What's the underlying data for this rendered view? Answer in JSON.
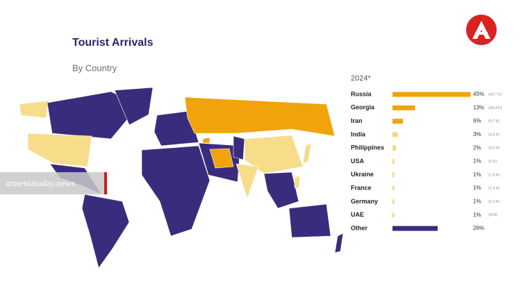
{
  "chart_data": {
    "type": "bar",
    "orientation": "horizontal",
    "title": "Tourist Arrivals",
    "subtitle": "By Country",
    "period_label": "2024*",
    "categories": [
      "Russia",
      "Georgia",
      "Iran",
      "India",
      "Philippines",
      "USA",
      "Ukraine",
      "France",
      "Germany",
      "UAE",
      "Other"
    ],
    "values": [
      45,
      13,
      6,
      3,
      2,
      1,
      1,
      1,
      1,
      1,
      26
    ],
    "value_labels": [
      "45%",
      "13%",
      "6%",
      "3%",
      "2%",
      "1%",
      "1%",
      "1%",
      "1%",
      "1%",
      "26%"
    ],
    "count_labels": [
      "(60.7 K)",
      "(20.4 K)",
      "(9.7 K)",
      "(4.8 K)",
      "(3.5 K)",
      "(2 K)",
      "(1.9 K)",
      "(1.4 K)",
      "(1.2 K)",
      "(978)",
      null
    ],
    "colors": [
      "#f0a30a",
      "#f0a30a",
      "#f0a30a",
      "#f7d67a",
      "#f7d67a",
      "#f7d67a",
      "#f7d67a",
      "#f7d67a",
      "#f7d67a",
      "#f7d67a",
      "#3a2c7c"
    ]
  },
  "watermark": "armeniatoday.news"
}
